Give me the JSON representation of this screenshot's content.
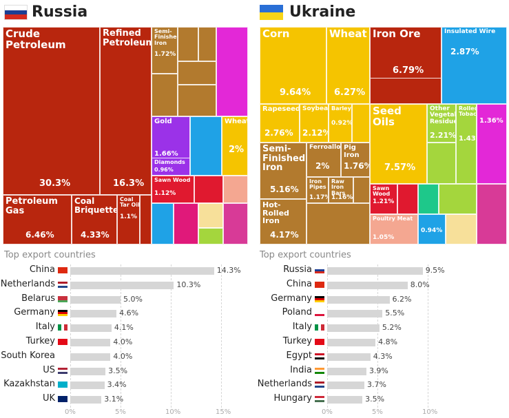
{
  "russia": {
    "title": "Russia",
    "treemap": [
      {
        "label": "Crude Petroleum",
        "value": "30.3%"
      },
      {
        "label": "Refined Petroleum",
        "value": "16.3%"
      },
      {
        "label": "Petroleum Gas",
        "value": "6.46%"
      },
      {
        "label": "Coal Briquettes",
        "value": "4.33%"
      },
      {
        "label": "Semi-Finished Iron",
        "value": "1.72%"
      },
      {
        "label": "Gold",
        "value": "1.66%"
      },
      {
        "label": "Diamonds",
        "value": "0.96%"
      },
      {
        "label": "Wheat",
        "value": "2%"
      },
      {
        "label": "Coal Tar Oil",
        "value": "1.1%"
      },
      {
        "label": "Sawn Wood",
        "value": "1.12%"
      }
    ],
    "section_title": "Top export countries",
    "chart_data": {
      "type": "bar",
      "categories": [
        "China",
        "Netherlands",
        "Belarus",
        "Germany",
        "Italy",
        "Turkey",
        "South Korea",
        "US",
        "Kazakhstan",
        "UK"
      ],
      "values": [
        14.3,
        10.3,
        5.0,
        4.6,
        4.1,
        4.0,
        4.0,
        3.5,
        3.4,
        3.1
      ],
      "labels": [
        "14.3%",
        "10.3%",
        "5.0%",
        "4.6%",
        "4.1%",
        "4.0%",
        "4.0%",
        "3.5%",
        "3.4%",
        "3.1%"
      ],
      "xticks": [
        "0%",
        "5%",
        "10%",
        "15%"
      ],
      "xlim": [
        0,
        15
      ]
    }
  },
  "ukraine": {
    "title": "Ukraine",
    "treemap": [
      {
        "label": "Corn",
        "value": "9.64%"
      },
      {
        "label": "Wheat",
        "value": "6.27%"
      },
      {
        "label": "Iron Ore",
        "value": "6.79%"
      },
      {
        "label": "Rapeseed",
        "value": "2.76%"
      },
      {
        "label": "Soybeans",
        "value": "2.12%"
      },
      {
        "label": "Barley",
        "value": "0.92%"
      },
      {
        "label": "Semi-Finished Iron",
        "value": "5.16%"
      },
      {
        "label": "Ferroalloys",
        "value": "2%"
      },
      {
        "label": "Pig Iron",
        "value": "1.76%"
      },
      {
        "label": "Hot-Rolled Iron",
        "value": "4.17%"
      },
      {
        "label": "Seed Oils",
        "value": "7.57%"
      },
      {
        "label": "Other Vegetable Residues",
        "value": "2.21%"
      },
      {
        "label": "Insulated Wire",
        "value": "2.87%"
      },
      {
        "label": "Sawn Wood",
        "value": "1.21%"
      },
      {
        "label": "Poultry Meat",
        "value": "1.05%"
      },
      {
        "label": "Rolled Tobacco",
        "value": "1.43%"
      },
      {
        "label": "",
        "value": "1.36%"
      },
      {
        "label": "Iron Pipes",
        "value": "1.17%"
      },
      {
        "label": "Raw Iron Bars",
        "value": "1.16%"
      },
      {
        "label": "",
        "value": "0.94%"
      }
    ],
    "section_title": "Top export countries",
    "chart_data": {
      "type": "bar",
      "categories": [
        "Russia",
        "China",
        "Germany",
        "Poland",
        "Italy",
        "Turkey",
        "Egypt",
        "India",
        "Netherlands",
        "Hungary"
      ],
      "values": [
        9.5,
        8.0,
        6.2,
        5.5,
        5.2,
        4.8,
        4.3,
        3.9,
        3.7,
        3.5
      ],
      "labels": [
        "9.5%",
        "8.0%",
        "6.2%",
        "5.5%",
        "5.2%",
        "4.8%",
        "4.3%",
        "3.9%",
        "3.7%",
        "3.5%"
      ],
      "xticks": [
        "0%",
        "5%",
        "10%"
      ],
      "xlim": [
        0,
        10
      ]
    }
  },
  "colors": {
    "oil": "#b8260e",
    "metal": "#b27a2e",
    "gold": "#9b32e8",
    "agri": "#f5c400",
    "chem": "#e0197a",
    "machine": "#1fa2e6",
    "mineral": "#7e3114",
    "veg": "#a4d63d",
    "bar": "#d6d6d6"
  }
}
